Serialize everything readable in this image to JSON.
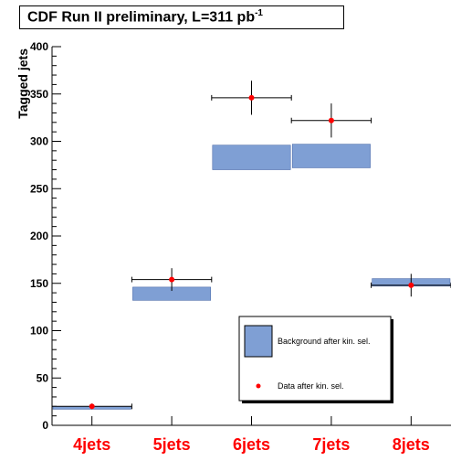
{
  "header": {
    "title_main": "CDF Run II preliminary, L=311 pb",
    "title_sup": "-1"
  },
  "chart_data": {
    "type": "bar",
    "title": "CDF Run II preliminary, L=311 pb^-1",
    "xlabel": "",
    "ylabel": "Tagged jets",
    "ylim": [
      0,
      400
    ],
    "yticks": [
      "0",
      "50",
      "100",
      "150",
      "200",
      "250",
      "300",
      "350",
      "400"
    ],
    "categories": [
      "4jets",
      "5jets",
      "6jets",
      "7jets",
      "8jets"
    ],
    "series": [
      {
        "name": "Background after kin. sel.",
        "style": "band",
        "low": [
          17,
          132,
          270,
          272,
          147
        ],
        "high": [
          20,
          146,
          296,
          297,
          155
        ]
      },
      {
        "name": "Data after kin. sel.",
        "style": "points",
        "values": [
          20,
          154,
          346,
          322,
          148
        ],
        "err_low": [
          3,
          12,
          18,
          18,
          12
        ],
        "err_high": [
          3,
          12,
          18,
          18,
          12
        ]
      }
    ],
    "legend": {
      "position": "bottom-right",
      "band_label": "Background after kin. sel.",
      "point_label": "Data after kin. sel."
    },
    "colors": {
      "band": "#7f9fd4",
      "band_edge": "#3f5fa0",
      "point": "#ff0000",
      "category_label": "#ff0000"
    },
    "grid": false
  }
}
